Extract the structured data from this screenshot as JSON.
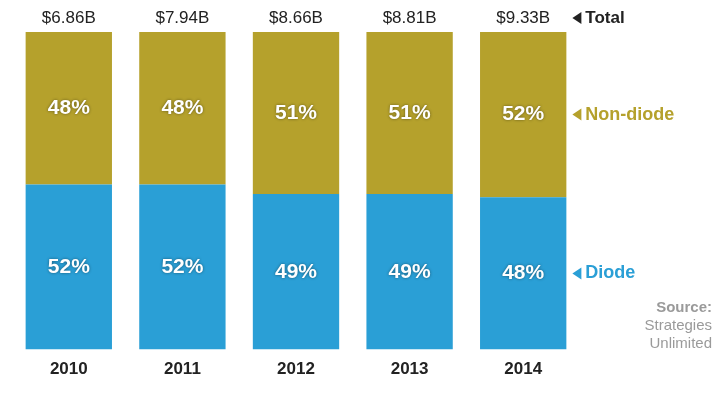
{
  "chart_data": {
    "type": "bar",
    "stacked": true,
    "categories": [
      "2010",
      "2011",
      "2012",
      "2013",
      "2014"
    ],
    "series": [
      {
        "name": "Diode",
        "color": "#2a9fd6",
        "values": [
          52,
          52,
          49,
          49,
          48
        ],
        "value_labels": [
          "52%",
          "52%",
          "49%",
          "49%",
          "48%"
        ]
      },
      {
        "name": "Non-diode",
        "color": "#b5a12c",
        "values": [
          48,
          48,
          51,
          51,
          52
        ],
        "value_labels": [
          "48%",
          "48%",
          "51%",
          "51%",
          "52%"
        ]
      }
    ],
    "totals": {
      "name": "Total",
      "values": [
        6.86,
        7.94,
        8.66,
        8.81,
        9.33
      ],
      "value_labels": [
        "$6.86B",
        "$7.94B",
        "$8.66B",
        "$8.81B",
        "$9.33B"
      ]
    },
    "ylim": [
      0,
      100
    ],
    "data_labels": true,
    "tick_labels": "x",
    "grid": false,
    "legend": "right",
    "annotations": [
      "Source:",
      "Strategies Unlimited"
    ]
  }
}
